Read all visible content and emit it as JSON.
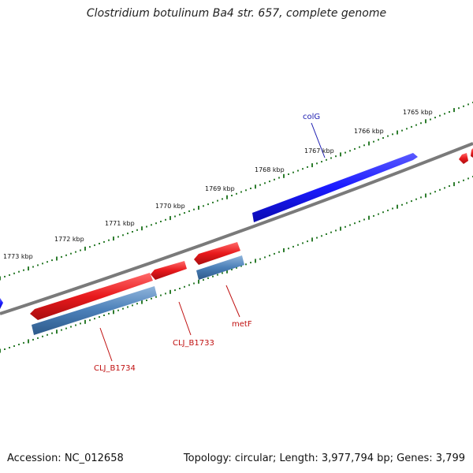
{
  "title": "Clostridium botulinum Ba4 str. 657, complete genome",
  "footer": {
    "accession": "Accession: NC_012658",
    "summary": "Topology: circular; Length: 3,977,794 bp; Genes: 3,799"
  },
  "ticks": [
    {
      "label": "1765 kbp"
    },
    {
      "label": "1766 kbp"
    },
    {
      "label": "1767 kbp"
    },
    {
      "label": "1768 kbp"
    },
    {
      "label": "1769 kbp"
    },
    {
      "label": "1770 kbp"
    },
    {
      "label": "1771 kbp"
    },
    {
      "label": "1772 kbp"
    },
    {
      "label": "1773 kbp"
    }
  ],
  "genes": [
    {
      "name": "colG",
      "strand": "forward",
      "color": "#1a1aff"
    },
    {
      "name": "metF",
      "strand": "reverse",
      "color": "#e8191c"
    },
    {
      "name": "CLJ_B1733",
      "strand": "reverse",
      "color": "#e8191c"
    },
    {
      "name": "CLJ_B1734",
      "strand": "reverse",
      "color": "#e8191c"
    }
  ],
  "colors": {
    "backbone": "#7a7a7a",
    "forward_gene": "#1a1aff",
    "reverse_gene": "#e8191c",
    "cds_feature": "#4a7fb8",
    "tick_dots": "#2e7d2e",
    "gene_label_forward": "#1a1ab0",
    "gene_label_reverse": "#c01010"
  }
}
